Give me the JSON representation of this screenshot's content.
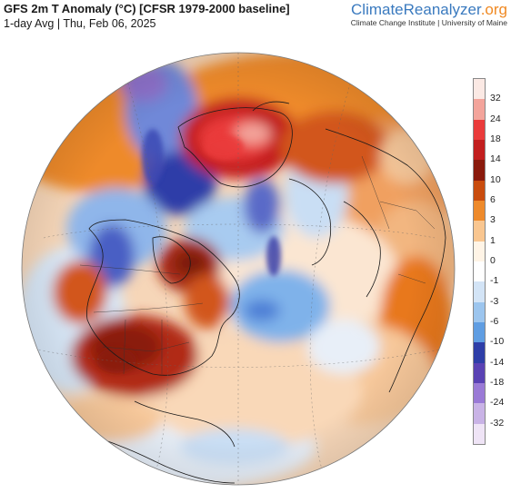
{
  "header": {
    "title": "GFS 2m T Anomaly (°C) [CFSR 1979-2000 baseline]",
    "subtitle": "1-day Avg | Thu, Feb 06, 2025"
  },
  "brand": {
    "part1": "Climate",
    "part2": "Reanalyzer",
    "part3": ".org",
    "org": "Climate Change Institute | University of Maine"
  },
  "legend": {
    "ticks": [
      "32",
      "24",
      "18",
      "14",
      "10",
      "6",
      "3",
      "1",
      "0",
      "-1",
      "-3",
      "-6",
      "-10",
      "-14",
      "-18",
      "-24",
      "-32"
    ],
    "colors": [
      "#fbe9e4",
      "#f3a49b",
      "#ea3b3b",
      "#c21e1e",
      "#8a1a0c",
      "#c94c0e",
      "#ee8a2b",
      "#f9c690",
      "#fff4e6",
      "#ffffff",
      "#d3e4f6",
      "#9cc5ee",
      "#5f9de2",
      "#2e3ea8",
      "#5a42b4",
      "#9a7ad6",
      "#c9b3e6",
      "#efe4f6"
    ]
  }
}
